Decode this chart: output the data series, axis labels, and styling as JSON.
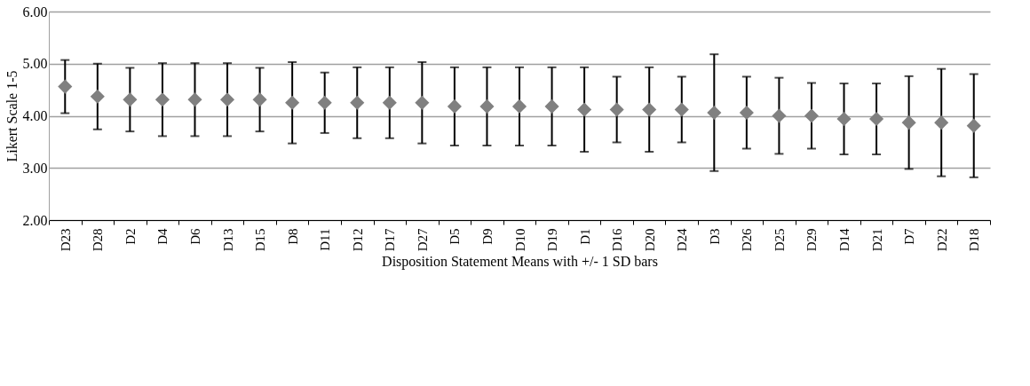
{
  "chart_data": {
    "type": "scatter",
    "xlabel": "Disposition Statement Means with +/- 1 SD bars",
    "ylabel": "Likert Scale 1-5",
    "categories": [
      "D23",
      "D28",
      "D2",
      "D4",
      "D6",
      "D13",
      "D15",
      "D8",
      "D11",
      "D12",
      "D17",
      "D27",
      "D5",
      "D9",
      "D10",
      "D19",
      "D1",
      "D16",
      "D20",
      "D24",
      "D3",
      "D26",
      "D25",
      "D29",
      "D14",
      "D21",
      "D7",
      "D22",
      "D18"
    ],
    "series": [
      {
        "color": "#808080",
        "values": [
          4.56,
          4.37,
          4.31,
          4.31,
          4.31,
          4.31,
          4.31,
          4.25,
          4.25,
          4.25,
          4.25,
          4.25,
          4.18,
          4.18,
          4.18,
          4.18,
          4.12,
          4.12,
          4.12,
          4.12,
          4.06,
          4.06,
          4.0,
          4.0,
          3.94,
          3.94,
          3.87,
          3.87,
          3.81
        ],
        "errors": [
          0.51,
          0.63,
          0.61,
          0.7,
          0.7,
          0.7,
          0.61,
          0.78,
          0.58,
          0.68,
          0.68,
          0.78,
          0.75,
          0.75,
          0.75,
          0.75,
          0.81,
          0.63,
          0.81,
          0.63,
          1.12,
          0.69,
          0.73,
          0.63,
          0.68,
          0.68,
          0.89,
          1.03,
          0.99
        ]
      }
    ],
    "ylim": [
      2,
      6
    ],
    "yticks": [
      {
        "value": 2,
        "label": "2.00"
      },
      {
        "value": 3,
        "label": "3.00"
      },
      {
        "value": 4,
        "label": "4.00"
      },
      {
        "value": 5,
        "label": "5.00"
      },
      {
        "value": 6,
        "label": "6.00"
      }
    ],
    "grid": "y",
    "marker": "diamond"
  }
}
